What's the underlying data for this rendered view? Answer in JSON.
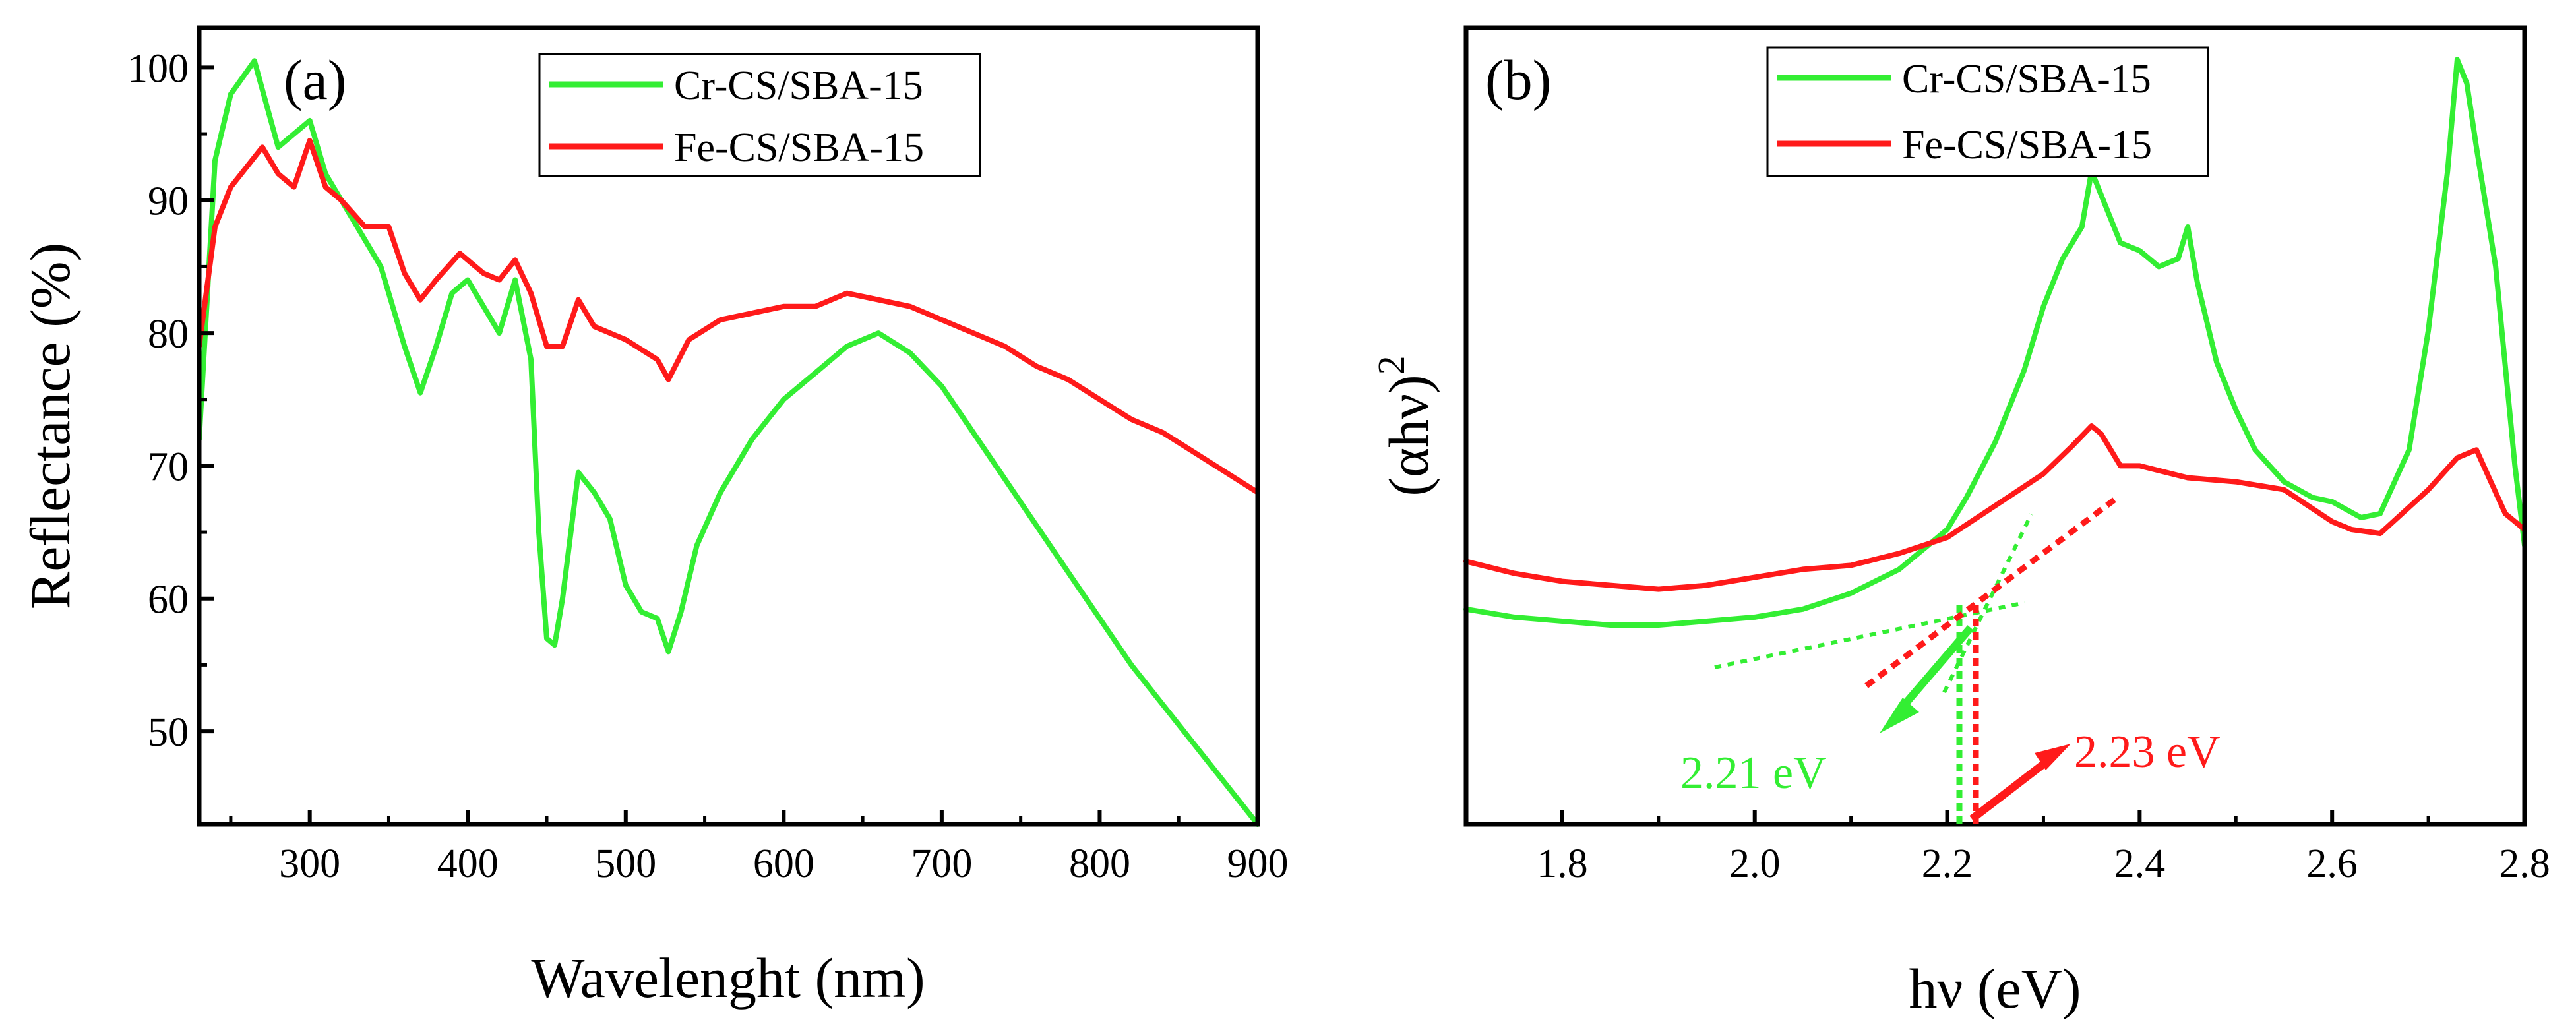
{
  "chart_data": [
    {
      "type": "line",
      "panel": "(a)",
      "xlabel": "Wavelenght (nm)",
      "ylabel": "Reflectance (%)",
      "xlim": [
        230,
        900
      ],
      "ylim": [
        43,
        103
      ],
      "xticks": [
        300,
        400,
        500,
        600,
        700,
        800,
        900
      ],
      "yticks": [
        50,
        60,
        70,
        80,
        90,
        100
      ],
      "legend_position": "top-center",
      "series": [
        {
          "name": "Cr-CS/SBA-15",
          "color": "#33ee33",
          "x": [
            230,
            240,
            250,
            265,
            280,
            300,
            310,
            320,
            330,
            345,
            360,
            370,
            380,
            390,
            400,
            410,
            420,
            430,
            440,
            445,
            450,
            455,
            460,
            470,
            480,
            490,
            500,
            510,
            520,
            527,
            535,
            545,
            560,
            580,
            600,
            620,
            640,
            660,
            680,
            700,
            720,
            740,
            760,
            780,
            800,
            820,
            840,
            860,
            880,
            900
          ],
          "y": [
            72,
            93,
            98,
            100.5,
            94,
            96,
            92,
            90,
            88,
            85,
            79,
            75.5,
            79,
            83,
            84,
            82,
            80,
            84,
            78,
            65,
            57,
            56.5,
            60,
            69.5,
            68,
            66,
            61,
            59,
            58.5,
            56,
            59,
            64,
            68,
            72,
            75,
            77,
            79,
            80,
            78.5,
            76,
            72.5,
            69,
            65.5,
            62,
            58.5,
            55,
            52,
            49,
            46,
            43
          ]
        },
        {
          "name": "Fe-CS/SBA-15",
          "color": "#ff1a1a",
          "x": [
            230,
            240,
            250,
            260,
            270,
            280,
            290,
            300,
            310,
            320,
            335,
            350,
            360,
            370,
            380,
            395,
            410,
            420,
            430,
            440,
            450,
            460,
            470,
            480,
            500,
            520,
            527,
            540,
            560,
            580,
            600,
            620,
            640,
            660,
            680,
            700,
            720,
            740,
            760,
            780,
            800,
            820,
            840,
            860,
            880,
            900
          ],
          "y": [
            79,
            88,
            91,
            92.5,
            94,
            92,
            91,
            94.5,
            91,
            90,
            88,
            88,
            84.5,
            82.5,
            84,
            86,
            84.5,
            84,
            85.5,
            83,
            79,
            79,
            82.5,
            80.5,
            79.5,
            78,
            76.5,
            79.5,
            81,
            81.5,
            82,
            82,
            83,
            82.5,
            82,
            81,
            80,
            79,
            77.5,
            76.5,
            75,
            73.5,
            72.5,
            71,
            69.5,
            68
          ]
        }
      ]
    },
    {
      "type": "line",
      "panel": "(b)",
      "xlabel": "hν (eV)",
      "ylabel_base": "(αhν)",
      "ylabel_exp": "2",
      "xlim": [
        1.7,
        2.8
      ],
      "ylim": [
        0,
        100
      ],
      "xticks": [
        "1.8",
        "2.0",
        "2.2",
        "2.4",
        "2.6",
        "2.8"
      ],
      "yticks": [],
      "legend_position": "top-center",
      "series": [
        {
          "name": "Cr-CS/SBA-15",
          "color": "#33ee33",
          "x": [
            1.7,
            1.75,
            1.8,
            1.85,
            1.9,
            1.95,
            2.0,
            2.05,
            2.1,
            2.15,
            2.18,
            2.2,
            2.22,
            2.25,
            2.28,
            2.3,
            2.32,
            2.34,
            2.35,
            2.36,
            2.38,
            2.4,
            2.42,
            2.44,
            2.45,
            2.46,
            2.48,
            2.5,
            2.52,
            2.55,
            2.58,
            2.6,
            2.63,
            2.65,
            2.68,
            2.7,
            2.72,
            2.73,
            2.74,
            2.75,
            2.77,
            2.79,
            2.8
          ],
          "y": [
            27,
            26,
            25.5,
            25,
            25,
            25.5,
            26,
            27,
            29,
            32,
            35,
            37,
            41,
            48,
            57,
            65,
            71,
            75,
            82,
            79,
            73,
            72,
            70,
            71,
            75,
            68,
            58,
            52,
            47,
            43,
            41,
            40.5,
            38.5,
            39,
            47,
            62,
            82,
            96,
            93,
            85,
            70,
            45,
            35
          ]
        },
        {
          "name": "Fe-CS/SBA-15",
          "color": "#ff1a1a",
          "x": [
            1.7,
            1.75,
            1.8,
            1.85,
            1.9,
            1.95,
            2.0,
            2.05,
            2.1,
            2.15,
            2.2,
            2.25,
            2.3,
            2.33,
            2.35,
            2.36,
            2.38,
            2.4,
            2.45,
            2.5,
            2.55,
            2.6,
            2.62,
            2.65,
            2.7,
            2.73,
            2.75,
            2.78,
            2.8
          ],
          "y": [
            33,
            31.5,
            30.5,
            30,
            29.5,
            30,
            31,
            32,
            32.5,
            34,
            36,
            40,
            44,
            47.5,
            50,
            49,
            45,
            45,
            43.5,
            43,
            42,
            38,
            37,
            36.5,
            42,
            46,
            47,
            39,
            37
          ]
        }
      ],
      "annotations": {
        "cr_bandgap": {
          "label": "2.21 eV",
          "value": 2.21,
          "color": "#33ee33"
        },
        "fe_bandgap": {
          "label": "2.23 eV",
          "value": 2.23,
          "color": "#ff1a1a"
        }
      }
    }
  ]
}
